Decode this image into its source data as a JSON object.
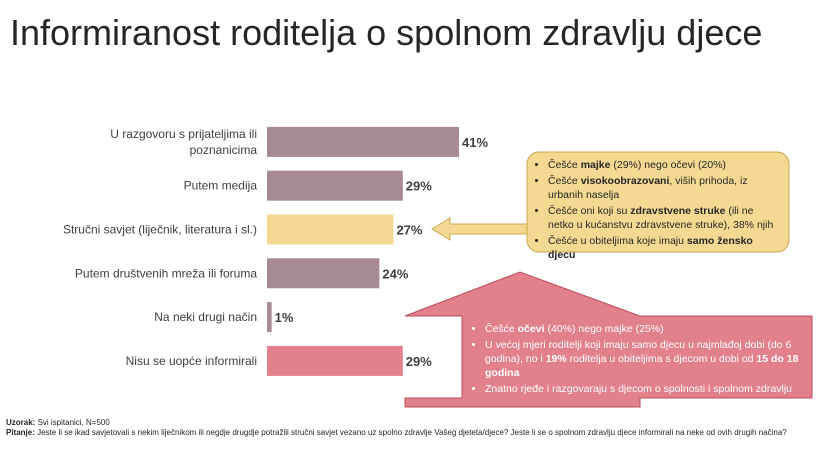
{
  "title": "Informiranost roditelja o spolnom zdravlju djece",
  "chart_data": {
    "type": "bar",
    "orientation": "horizontal",
    "categories": [
      [
        "U razgovoru s prijateljima ili",
        "poznanicima"
      ],
      [
        "Putem medija"
      ],
      [
        "Stručni savjet (liječnik, literatura i sl.)"
      ],
      [
        "Putem društvenih mreža ili foruma"
      ],
      [
        "Na neki drugi način"
      ],
      [
        "Nisu se uopće informirali"
      ]
    ],
    "values": [
      41,
      29,
      27,
      24,
      1,
      29
    ],
    "value_labels": [
      "41%",
      "29%",
      "27%",
      "24%",
      "1%",
      "29%"
    ],
    "bar_colors": [
      "#a78a92",
      "#a78a92",
      "#f5d992",
      "#a78a92",
      "#a78a92",
      "#e2818c"
    ],
    "xlim": [
      0,
      41
    ]
  },
  "callout_top": {
    "color": "#f5d992",
    "items": [
      [
        {
          "t": "Češće "
        },
        {
          "t": "majke",
          "b": true
        },
        {
          "t": " (29%) nego očevi (20%)"
        }
      ],
      [
        {
          "t": "Češće "
        },
        {
          "t": "visokoobrazovani",
          "b": true
        },
        {
          "t": ", viših prihoda, iz urbanih naselja"
        }
      ],
      [
        {
          "t": "Češće oni koji su "
        },
        {
          "t": "zdravstvene struke",
          "b": true
        },
        {
          "t": " (ili ne netko u kućanstvu zdravstvene struke), 38% njih"
        }
      ],
      [
        {
          "t": "Češće u obiteljima koje imaju "
        },
        {
          "t": "samo žensko djecu",
          "b": true
        }
      ]
    ]
  },
  "callout_bottom": {
    "color": "#e2818c",
    "items": [
      [
        {
          "t": "Češće "
        },
        {
          "t": "očevi",
          "b": true
        },
        {
          "t": " (40%) nego majke (25%)"
        }
      ],
      [
        {
          "t": "U većoj mjeri roditelji koji imaju samo djecu u najmlađoj dobi (do 6 godina), no i "
        },
        {
          "t": "19%",
          "b": true
        },
        {
          "t": " roditelja u obiteljima s djecom u dobi od "
        },
        {
          "t": "15 do 18 godina",
          "b": true
        }
      ],
      [
        {
          "t": "Znatno rjeđe i razgovaraju s djecom o spolnosti i spolnom zdravlju"
        }
      ]
    ]
  },
  "footnote": {
    "sample_label": "Uzorak:",
    "sample_text": " Svi ispitanici, N=500",
    "question_label": "Pitanje:",
    "question_text": " Jeste li se ikad savjetovali s nekim liječnikom ili negdje drugdje potražili stručni savjet vezano uz spolno zdravlje Vašeg djeteta/djece? Jeste li se o spolnom zdravlju djece informirali na neke od ovih drugih načina?"
  }
}
